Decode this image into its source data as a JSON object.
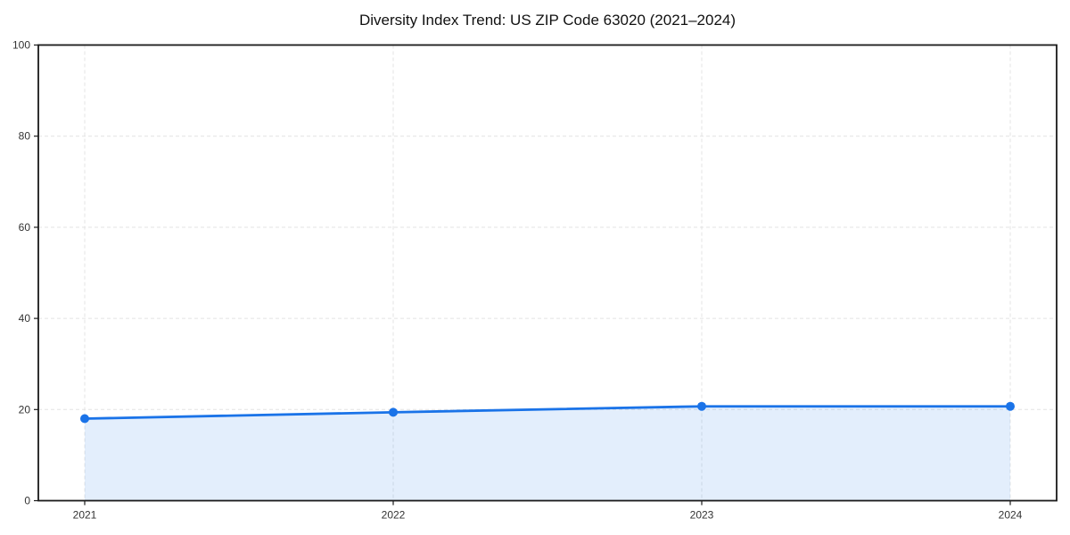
{
  "page": {
    "background": "#ffffff"
  },
  "chart_data": {
    "type": "area",
    "title": "Diversity Index Trend: US ZIP Code 63020 (2021–2024)",
    "x": [
      "2021",
      "2022",
      "2023",
      "2024"
    ],
    "series": [
      {
        "name": "Diversity Index",
        "values": [
          18.0,
          19.4,
          20.7,
          20.7
        ]
      }
    ],
    "xlabel": "",
    "ylabel": "",
    "ylim": [
      0,
      100
    ],
    "yticks": [
      0,
      20,
      40,
      60,
      80,
      100
    ],
    "grid": true,
    "grid_style": "dashed",
    "legend_position": "none",
    "marker": "circle",
    "colors": {
      "line": "#1a73e8",
      "marker": "#1a73e8",
      "area_fill": "rgba(26,115,232,0.12)",
      "grid": "#e3e3e3",
      "spine": "#1a1a1a",
      "tick_label": "#333333",
      "title": "#111111"
    }
  }
}
